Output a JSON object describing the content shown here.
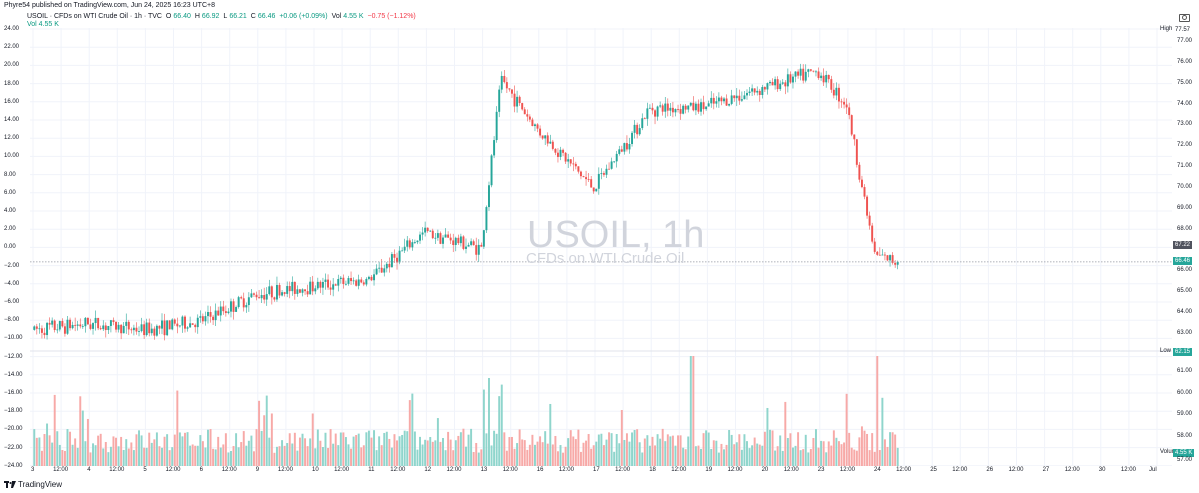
{
  "header": {
    "published_text": "Phyre54 published on TradingView.com, Jun 24, 2025 16:23 UTC+8"
  },
  "legend": {
    "title": "USOIL · CFDs on WTI Crude Oil · 1h · TVC",
    "open_label": "O",
    "open": "66.40",
    "high_label": "H",
    "high": "66.92",
    "low_label": "L",
    "low": "66.21",
    "close_label": "C",
    "close": "66.46",
    "change": "+0.06 (+0.09%)",
    "vol_label": "Vol",
    "vol_value": "4.55 K",
    "change_day": "−0.75 (−1.12%)",
    "vol_line": "Vol  4.55 K"
  },
  "watermark": {
    "symbol": "USOIL, 1h",
    "description": "CFDs on WTI Crude Oil"
  },
  "left_axis": {
    "ticks": [
      "24.00",
      "22.00",
      "20.00",
      "18.00",
      "16.00",
      "14.00",
      "12.00",
      "10.00",
      "8.00",
      "6.00",
      "4.00",
      "2.00",
      "0.00",
      "−2.00",
      "−4.00",
      "−6.00",
      "−8.00",
      "−10.00",
      "−12.00",
      "−14.00",
      "−16.00",
      "−18.00",
      "−20.00",
      "−22.00",
      "−24.00"
    ]
  },
  "right_axis": {
    "ticks": [
      "77.00",
      "76.00",
      "75.00",
      "74.00",
      "73.00",
      "72.00",
      "71.00",
      "70.00",
      "69.00",
      "68.00",
      "66.00",
      "65.00",
      "64.00",
      "63.00",
      "61.00",
      "60.00",
      "59.00",
      "58.00"
    ],
    "high_label": "High",
    "high_value": "77.57",
    "last_value": "67.22",
    "current_value": "66.46",
    "low_label": "Low",
    "low_value": "62.15",
    "volume_label": "Volume",
    "volume_value": "4.55 K",
    "volume_below": "57.00"
  },
  "x_axis": {
    "ticks": [
      "3",
      "12:00",
      "4",
      "12:00",
      "5",
      "12:00",
      "6",
      "12:00",
      "9",
      "12:00",
      "10",
      "12:00",
      "11",
      "12:00",
      "12",
      "12:00",
      "13",
      "12:00",
      "16",
      "12:00",
      "17",
      "12:00",
      "18",
      "12:00",
      "19",
      "12:00",
      "20",
      "12:00",
      "23",
      "12:00",
      "24",
      "12:00",
      "25",
      "12:00",
      "26",
      "12:00",
      "27",
      "12:00",
      "30",
      "12:00",
      "Jul"
    ]
  },
  "footer": {
    "brand": "TradingView"
  },
  "colors": {
    "up": "#26a69a",
    "down": "#ef5350",
    "vol_up": "#8fd5cc",
    "vol_down": "#f7a9a7",
    "grid": "#f0f3fa",
    "price_line": "#9598a1"
  },
  "chart_data": {
    "type": "candlestick",
    "title": "USOIL, 1h",
    "ylabel": "",
    "xlabel": "",
    "y_range": [
      62.15,
      77.57
    ],
    "last_price": 66.46,
    "anchors": [
      {
        "day_index": 0,
        "label": "3",
        "price": 63.2
      },
      {
        "day_index": 1,
        "label": "4",
        "price": 63.5
      },
      {
        "day_index": 2,
        "label": "5",
        "price": 63.2
      },
      {
        "day_index": 3,
        "label": "6",
        "price": 63.6
      },
      {
        "day_index": 4,
        "label": "9",
        "price": 64.9
      },
      {
        "day_index": 5,
        "label": "10",
        "price": 65.3
      },
      {
        "day_index": 6,
        "label": "11",
        "price": 65.6
      },
      {
        "day_index": 7,
        "label": "12",
        "price": 67.9
      },
      {
        "day_index": 8,
        "label": "13",
        "price": 67.1
      },
      {
        "day_index": 8.35,
        "label": "13",
        "price": 75.2
      },
      {
        "day_index": 9,
        "label": "16",
        "price": 72.8
      },
      {
        "day_index": 10,
        "label": "17",
        "price": 70.0
      },
      {
        "day_index": 11,
        "label": "18",
        "price": 73.8
      },
      {
        "day_index": 12,
        "label": "19",
        "price": 73.9
      },
      {
        "day_index": 13,
        "label": "20",
        "price": 74.8
      },
      {
        "day_index": 14,
        "label": "23",
        "price": 75.6
      },
      {
        "day_index": 14.5,
        "label": "23",
        "price": 74.0
      },
      {
        "day_index": 15,
        "label": "24",
        "price": 66.8
      },
      {
        "day_index": 15.4,
        "label": "24",
        "price": 66.46
      }
    ],
    "volume_peaks": [
      {
        "day_index": 8.1,
        "value": 0.8
      },
      {
        "day_index": 8.3,
        "value": 0.74
      },
      {
        "day_index": 11.7,
        "value": 1.0
      },
      {
        "day_index": 15.0,
        "value": 1.0
      },
      {
        "day_index": 15.1,
        "value": 0.62
      }
    ]
  }
}
